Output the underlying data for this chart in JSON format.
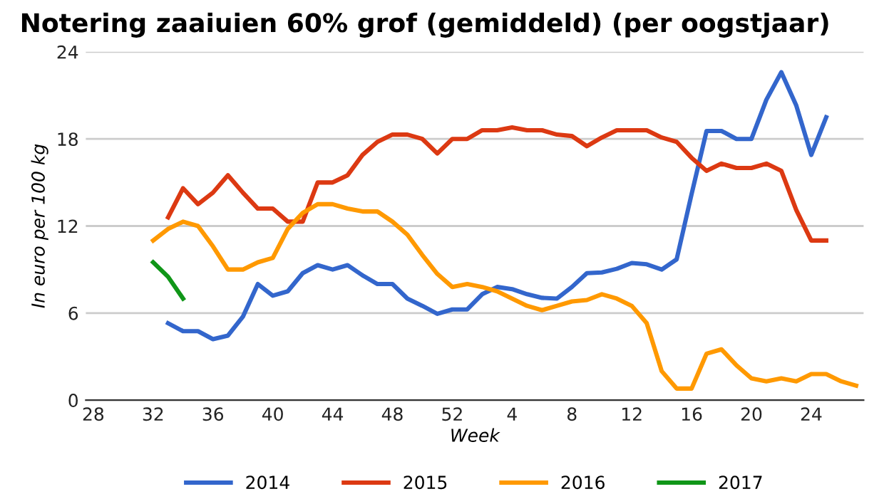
{
  "chart_data": {
    "type": "line",
    "title": "Notering zaaiuien 60% grof (gemiddeld) (per oogstjaar)",
    "xlabel": "Week",
    "ylabel": "In euro per 100 kg",
    "categories": [
      "28",
      null,
      null,
      null,
      "32",
      null,
      null,
      null,
      "36",
      null,
      null,
      null,
      "40",
      null,
      null,
      null,
      "44",
      null,
      null,
      null,
      "48",
      null,
      null,
      null,
      "52",
      null,
      null,
      null,
      "4",
      null,
      null,
      null,
      "8",
      null,
      null,
      null,
      "12",
      null,
      null,
      null,
      "16",
      null,
      null,
      null,
      "20",
      null,
      null,
      null,
      "24",
      null,
      null,
      null
    ],
    "ylim": [
      0,
      24
    ],
    "yticks": [
      0,
      6,
      12,
      18,
      24
    ],
    "grid": "y",
    "legend": "bottom",
    "marker": "none",
    "line_style": "solid",
    "series": [
      {
        "name": "2014",
        "color": "#3366cc",
        "values": [
          null,
          null,
          null,
          null,
          null,
          5.3,
          4.75,
          4.75,
          4.2,
          4.45,
          5.75,
          8.0,
          7.2,
          7.5,
          8.75,
          9.3,
          9.0,
          9.3,
          8.6,
          8.0,
          8.0,
          7.0,
          6.5,
          5.95,
          6.25,
          6.25,
          7.3,
          7.8,
          7.65,
          7.3,
          7.05,
          7.0,
          7.8,
          8.75,
          8.8,
          9.05,
          9.45,
          9.36,
          9.0,
          9.7,
          14.2,
          18.55,
          18.55,
          18.0,
          18.0,
          20.7,
          22.6,
          20.3,
          16.9,
          19.5,
          null,
          null
        ]
      },
      {
        "name": "2015",
        "color": "#dc3912",
        "values": [
          null,
          null,
          null,
          null,
          null,
          12.6,
          14.6,
          13.5,
          14.3,
          15.5,
          14.3,
          13.2,
          13.2,
          12.3,
          12.3,
          15.0,
          15.0,
          15.5,
          16.9,
          17.8,
          18.3,
          18.3,
          18.0,
          17.0,
          18.0,
          18.0,
          18.6,
          18.6,
          18.8,
          18.6,
          18.6,
          18.3,
          18.2,
          17.5,
          18.1,
          18.6,
          18.6,
          18.6,
          18.1,
          17.8,
          16.7,
          15.8,
          16.3,
          16.0,
          16.0,
          16.3,
          15.8,
          13.1,
          11.0,
          11.0,
          null,
          null
        ]
      },
      {
        "name": "2016",
        "color": "#ff9900",
        "values": [
          null,
          null,
          null,
          null,
          11.0,
          11.8,
          12.3,
          12.0,
          10.6,
          9.0,
          9.0,
          9.5,
          9.8,
          11.8,
          12.9,
          13.5,
          13.5,
          13.2,
          13.0,
          13.0,
          12.3,
          11.4,
          10.0,
          8.7,
          7.8,
          8.0,
          7.8,
          7.5,
          7.0,
          6.5,
          6.2,
          6.5,
          6.8,
          6.9,
          7.3,
          7.0,
          6.5,
          5.3,
          2.0,
          0.8,
          0.8,
          3.2,
          3.5,
          2.4,
          1.5,
          1.3,
          1.5,
          1.3,
          1.8,
          1.8,
          1.3,
          1.0
        ]
      },
      {
        "name": "2017",
        "color": "#109618",
        "values": [
          null,
          null,
          null,
          null,
          9.5,
          8.5,
          7.0,
          null,
          null,
          null,
          null,
          null,
          null,
          null,
          null,
          null,
          null,
          null,
          null,
          null,
          null,
          null,
          null,
          null,
          null,
          null,
          null,
          null,
          null,
          null,
          null,
          null,
          null,
          null,
          null,
          null,
          null,
          null,
          null,
          null,
          null,
          null,
          null,
          null,
          null,
          null,
          null,
          null,
          null,
          null,
          null,
          null
        ]
      }
    ]
  }
}
